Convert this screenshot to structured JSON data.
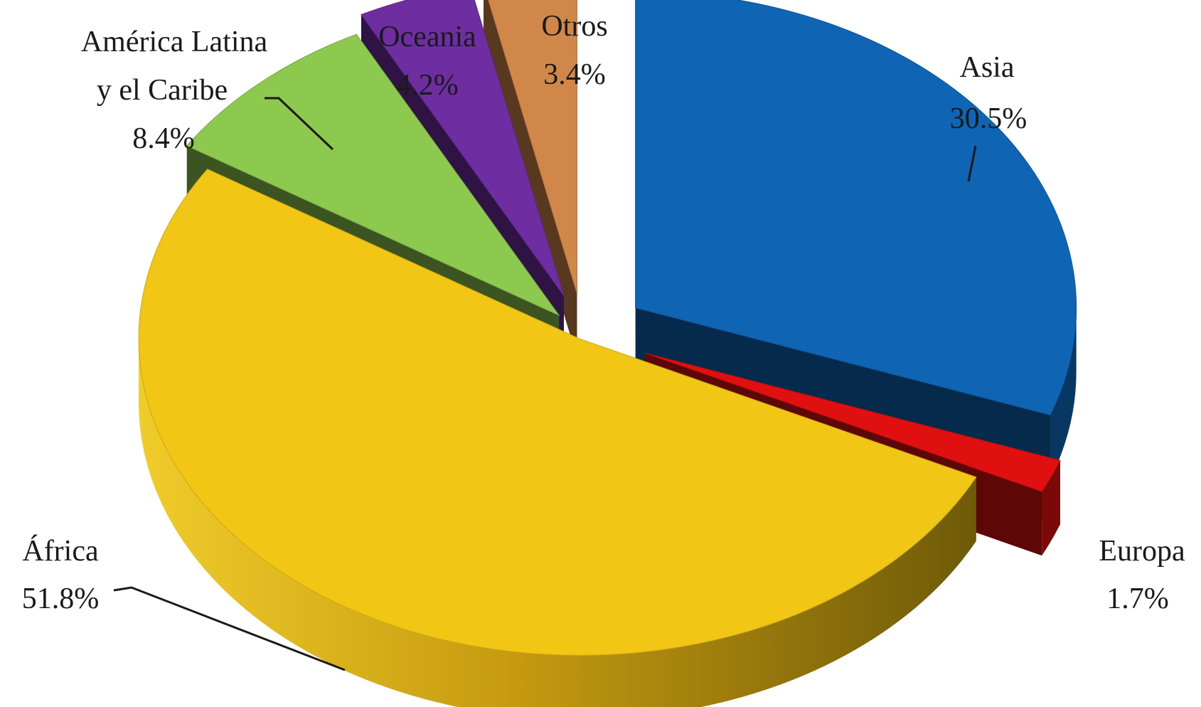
{
  "chart_data": {
    "type": "pie",
    "title": "",
    "style": "3d-exploded",
    "slices": [
      {
        "label": "Asia",
        "value": 30.5,
        "value_label": "30.5%",
        "color": "#0f64b4"
      },
      {
        "label": "Europa",
        "value": 1.7,
        "value_label": "1.7%",
        "color": "#e01010"
      },
      {
        "label": "África",
        "value": 51.8,
        "value_label": "51.8%",
        "color": "#f2c614"
      },
      {
        "label_lines": [
          "América Latina",
          "y el Caribe"
        ],
        "label": "América Latina y el Caribe",
        "value": 8.4,
        "value_label": "8.4%",
        "color": "#8dc84f"
      },
      {
        "label": "Oceania",
        "value": 4.2,
        "value_label": "4.2%",
        "color": "#6e2ea1"
      },
      {
        "label": "Otros",
        "value": 3.4,
        "value_label": "3.4%",
        "color": "#d2874a"
      }
    ]
  }
}
